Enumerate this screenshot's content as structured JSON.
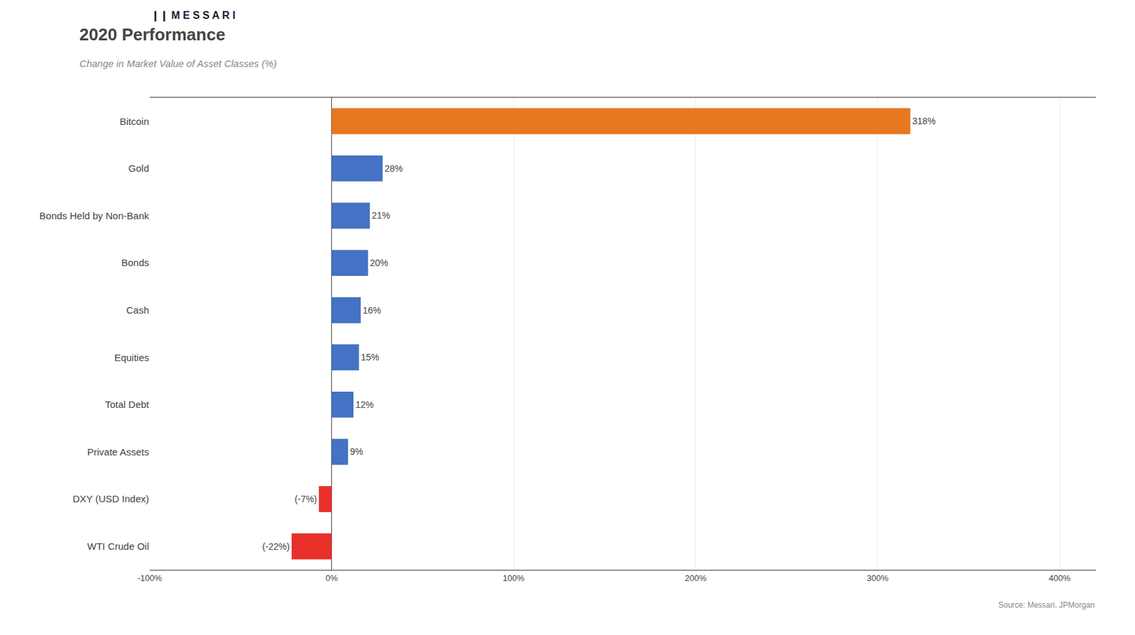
{
  "chart_data": {
    "type": "bar",
    "orientation": "horizontal",
    "title": "2020 Performance",
    "subtitle": "Change in Market Value of Asset Classes (%)",
    "annotations": [
      "Source: Messari, JPMorgan",
      "❙❙ M E S S A R I"
    ],
    "categories": [
      "WTI Crude Oil",
      "DXY (USD Index)",
      "Private Assets",
      "Total Debt",
      "Equities",
      "Cash",
      "Bonds",
      "Bonds Held by Non-Bank",
      "Gold",
      "Bitcoin"
    ],
    "values": [
      -22,
      -7,
      9,
      12,
      15,
      16,
      20,
      21,
      28,
      318
    ],
    "value_labels": [
      "(-22%)",
      "(-7%)",
      "9%",
      "12%",
      "15%",
      "16%",
      "20%",
      "21%",
      "28%",
      "318%"
    ],
    "data_labels": true,
    "colors": [
      "#e8302a",
      "#e8302a",
      "#4472c4",
      "#4472c4",
      "#4472c4",
      "#4472c4",
      "#4472c4",
      "#4472c4",
      "#4472c4",
      "#e87722"
    ],
    "xlim": [
      -100,
      420
    ],
    "xticks": [
      {
        "value": -100,
        "label": "-100%"
      },
      {
        "value": 0,
        "label": "0%"
      },
      {
        "value": 100,
        "label": "100%"
      },
      {
        "value": 200,
        "label": "200%"
      },
      {
        "value": 300,
        "label": "300%"
      },
      {
        "value": 400,
        "label": "400%"
      }
    ],
    "grid": true
  }
}
